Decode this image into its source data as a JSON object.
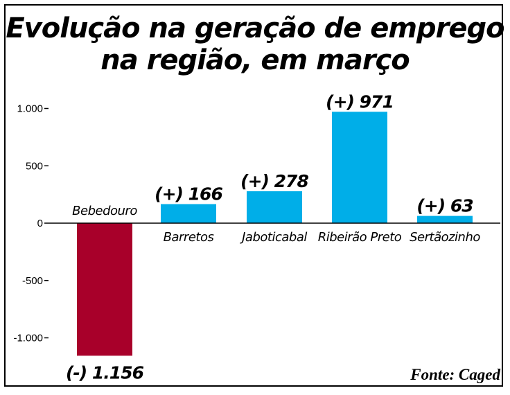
{
  "chart_data": {
    "type": "bar",
    "title_lines": [
      "Evolução na geração de emprego",
      "na região, em março"
    ],
    "categories": [
      "Bebedouro",
      "Barretos",
      "Jaboticabal",
      "Ribeirão Preto",
      "Sertãozinho"
    ],
    "values": [
      -1156,
      166,
      278,
      971,
      63
    ],
    "value_labels": [
      "(-) 1.156",
      "(+) 166",
      "(+) 278",
      "(+) 971",
      "(+) 63"
    ],
    "yticks": [
      1000,
      500,
      0,
      -500,
      -1000
    ],
    "ytick_labels": [
      "1.000",
      "500",
      "0",
      "-500",
      "-1.000"
    ],
    "ylim": [
      -1250,
      1050
    ],
    "xlabel": "",
    "ylabel": "",
    "grid": false,
    "source": "Fonte: Caged",
    "colors": {
      "positive": "#00aee8",
      "negative": "#a8002a"
    }
  }
}
